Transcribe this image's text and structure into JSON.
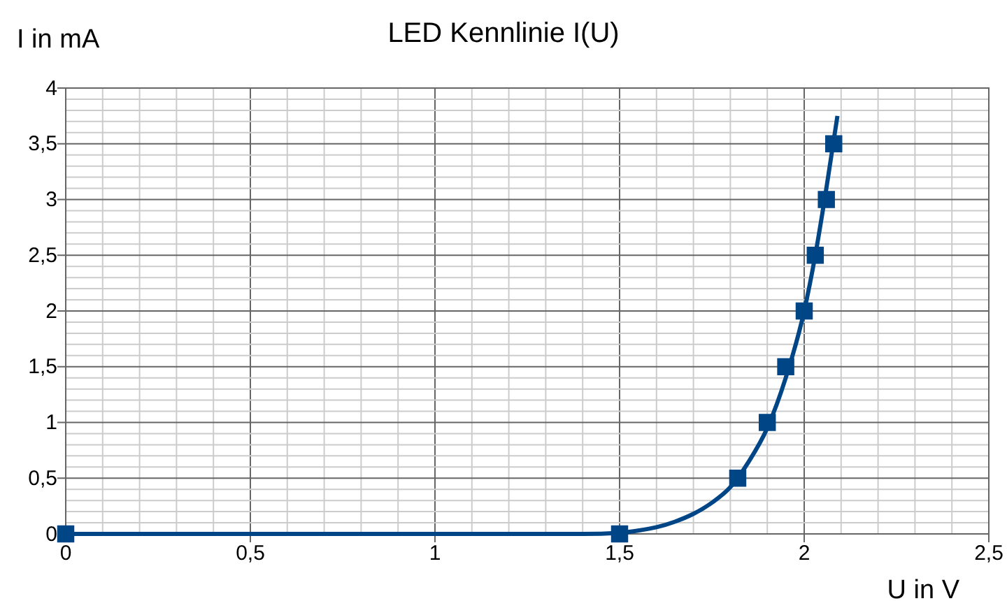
{
  "chart_data": {
    "type": "scatter",
    "title": "LED Kennlinie I(U)",
    "xlabel": "U in V",
    "ylabel": "I in mA",
    "xlim": [
      0,
      2.5
    ],
    "ylim": [
      0,
      4
    ],
    "xticks": [
      0,
      {
        "value": 0.1,
        "label": null
      },
      {
        "value": 0.2,
        "label": null
      },
      {
        "value": 0.3,
        "label": null
      },
      {
        "value": 0.4,
        "label": null
      },
      {
        "value": 0.5,
        "label": "0,5"
      },
      {
        "value": 0.6,
        "label": null
      },
      {
        "value": 0.7,
        "label": null
      },
      {
        "value": 0.8,
        "label": null
      },
      {
        "value": 0.9,
        "label": null
      },
      1,
      {
        "value": 1.1,
        "label": null
      },
      {
        "value": 1.2,
        "label": null
      },
      {
        "value": 1.3,
        "label": null
      },
      {
        "value": 1.4,
        "label": null
      },
      {
        "value": 1.5,
        "label": "1,5"
      },
      {
        "value": 1.6,
        "label": null
      },
      {
        "value": 1.7,
        "label": null
      },
      {
        "value": 1.8,
        "label": null
      },
      {
        "value": 1.9,
        "label": null
      },
      2,
      {
        "value": 2.1,
        "label": null
      },
      {
        "value": 2.2,
        "label": null
      },
      {
        "value": 2.3,
        "label": null
      },
      {
        "value": 2.4,
        "label": null
      },
      {
        "value": 2.5,
        "label": "2,5"
      }
    ],
    "yticks": [
      0,
      {
        "value": 0.1,
        "label": null
      },
      {
        "value": 0.2,
        "label": null
      },
      {
        "value": 0.3,
        "label": null
      },
      {
        "value": 0.4,
        "label": null
      },
      {
        "value": 0.5,
        "label": "0,5"
      },
      {
        "value": 0.6,
        "label": null
      },
      {
        "value": 0.7,
        "label": null
      },
      {
        "value": 0.8,
        "label": null
      },
      {
        "value": 0.9,
        "label": null
      },
      1,
      {
        "value": 1.1,
        "label": null
      },
      {
        "value": 1.2,
        "label": null
      },
      {
        "value": 1.3,
        "label": null
      },
      {
        "value": 1.4,
        "label": null
      },
      {
        "value": 1.5,
        "label": "1,5"
      },
      {
        "value": 1.6,
        "label": null
      },
      {
        "value": 1.7,
        "label": null
      },
      {
        "value": 1.8,
        "label": null
      },
      {
        "value": 1.9,
        "label": null
      },
      2,
      {
        "value": 2.1,
        "label": null
      },
      {
        "value": 2.2,
        "label": null
      },
      {
        "value": 2.3,
        "label": null
      },
      {
        "value": 2.4,
        "label": null
      },
      {
        "value": 2.5,
        "label": "2,5"
      },
      {
        "value": 2.6,
        "label": null
      },
      {
        "value": 2.7,
        "label": null
      },
      {
        "value": 2.8,
        "label": null
      },
      {
        "value": 2.9,
        "label": null
      },
      3,
      {
        "value": 3.1,
        "label": null
      },
      {
        "value": 3.2,
        "label": null
      },
      {
        "value": 3.3,
        "label": null
      },
      {
        "value": 3.4,
        "label": null
      },
      {
        "value": 3.5,
        "label": "3,5"
      },
      {
        "value": 3.6,
        "label": null
      },
      {
        "value": 3.7,
        "label": null
      },
      {
        "value": 3.8,
        "label": null
      },
      {
        "value": 3.9,
        "label": null
      },
      4
    ],
    "grid": true,
    "marker": "square",
    "series": [
      {
        "type": "line",
        "marker": "none",
        "color": "#004586",
        "x": [
          0,
          1.3,
          1.4,
          1.5,
          1.55,
          1.6,
          1.65,
          1.7,
          1.75,
          1.8,
          1.85,
          1.9,
          1.95,
          2.0,
          2.03,
          2.06,
          2.09
        ],
        "values": [
          0,
          0,
          0,
          0.01,
          0.03,
          0.06,
          0.11,
          0.18,
          0.28,
          0.42,
          0.65,
          0.95,
          1.4,
          2.0,
          2.5,
          3.1,
          3.75
        ]
      },
      {
        "color": "#004586",
        "x": [
          0,
          1.5,
          1.82,
          1.9,
          1.95,
          2.0,
          2.03,
          2.06,
          2.08
        ],
        "values": [
          0,
          0,
          0.5,
          1,
          1.5,
          2,
          2.5,
          3,
          3.5
        ]
      }
    ]
  }
}
